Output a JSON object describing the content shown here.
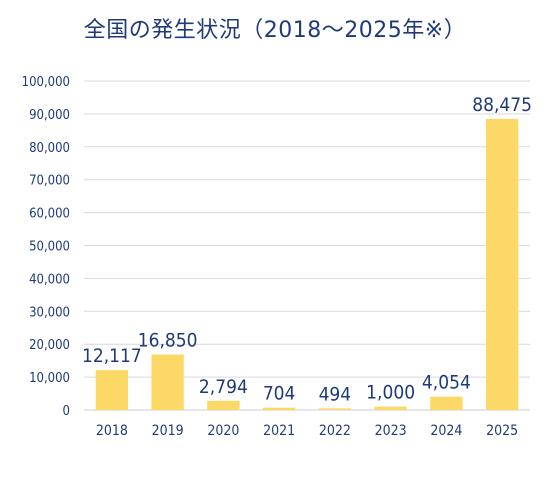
{
  "title": "全国の発生状況（2018～2025年※）",
  "colors": {
    "bar": "#fcd867",
    "text": "#1f3a7a",
    "grid": "#d9d9d9",
    "axis": "#cccccc"
  },
  "chart_data": {
    "type": "bar",
    "title": "全国の発生状況（2018～2025年※）",
    "xlabel": "",
    "ylabel": "",
    "ylim": [
      0,
      100000
    ],
    "yticks": [
      0,
      10000,
      20000,
      30000,
      40000,
      50000,
      60000,
      70000,
      80000,
      90000,
      100000
    ],
    "ytick_labels": [
      "0",
      "10,000",
      "20,000",
      "30,000",
      "40,000",
      "50,000",
      "60,000",
      "70,000",
      "80,000",
      "90,000",
      "100,000"
    ],
    "grid": true,
    "legend": "none",
    "categories": [
      "2018",
      "2019",
      "2020",
      "2021",
      "2022",
      "2023",
      "2024",
      "2025"
    ],
    "values": [
      12117,
      16850,
      2794,
      704,
      494,
      1000,
      4054,
      88475
    ],
    "value_labels": [
      "12,117",
      "16,850",
      "2,794",
      "704",
      "494",
      "1,000",
      "4,054",
      "88,475"
    ]
  }
}
